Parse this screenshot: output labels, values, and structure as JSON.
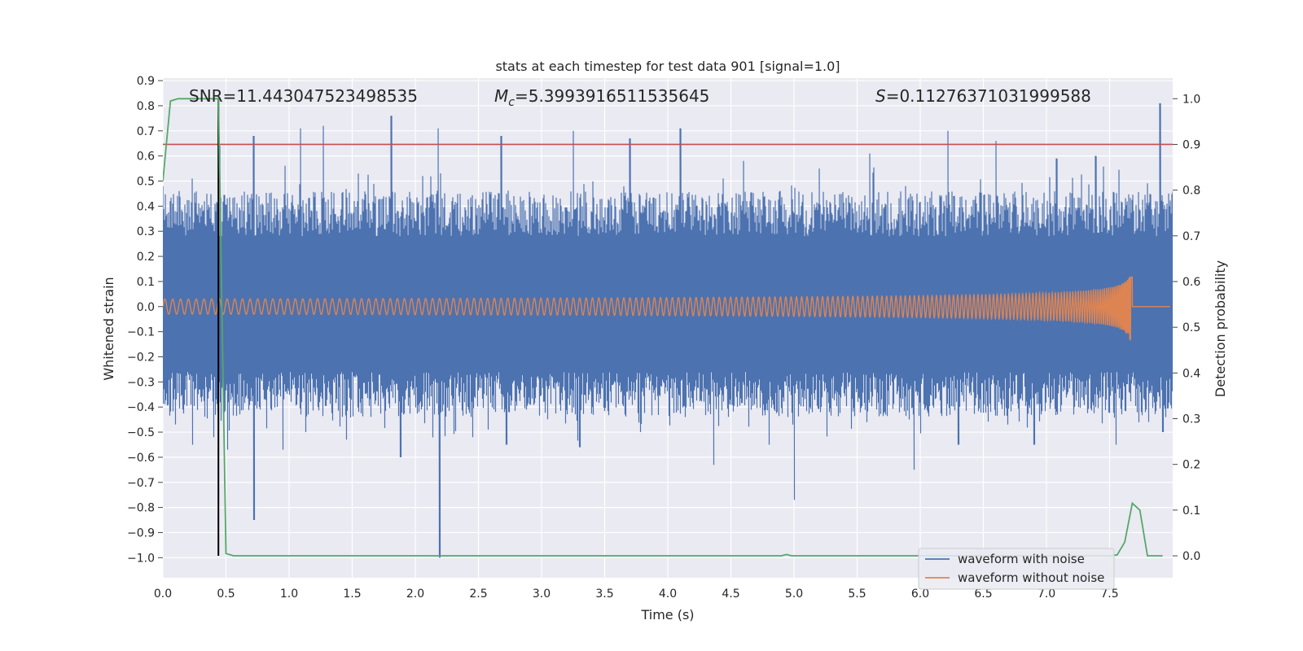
{
  "chart_data": {
    "type": "line",
    "title": "stats at each timestep for test data 901 [signal=1.0]",
    "xlabel": "Time (s)",
    "ylabel": "Whitened strain",
    "y2label": "Detection probability",
    "xlim": [
      0.0,
      8.0
    ],
    "ylim": [
      -1.08,
      0.91
    ],
    "y2lim": [
      -0.048,
      1.045
    ],
    "xticks": [
      "0.0",
      "0.5",
      "1.0",
      "1.5",
      "2.0",
      "2.5",
      "3.0",
      "3.5",
      "4.0",
      "4.5",
      "5.0",
      "5.5",
      "6.0",
      "6.5",
      "7.0",
      "7.5"
    ],
    "yticks": [
      "0.9",
      "0.8",
      "0.7",
      "0.6",
      "0.5",
      "0.4",
      "0.3",
      "0.2",
      "0.1",
      "0.0",
      "−0.1",
      "−0.2",
      "−0.3",
      "−0.4",
      "−0.5",
      "−0.6",
      "−0.7",
      "−0.8",
      "−0.9",
      "−1.0"
    ],
    "y2ticks": [
      "1.0",
      "0.9",
      "0.8",
      "0.7",
      "0.6",
      "0.5",
      "0.4",
      "0.3",
      "0.2",
      "0.1",
      "0.0"
    ],
    "annotations": {
      "snr": "SNR=11.443047523498535",
      "mc_symbol": "M",
      "mc_sub": "c",
      "mc_value": "=5.3993916511535645",
      "s_symbol": "S",
      "s_value": "=0.11276371031999588"
    },
    "threshold_line": {
      "y2": 0.9,
      "color": "#c44e52"
    },
    "detection_marker": {
      "x": 0.44,
      "color": "#000000"
    },
    "noise_band": {
      "typical_range": [
        -0.28,
        0.3
      ]
    },
    "noise_peaks": [
      {
        "x": 0.0,
        "y": 0.48
      },
      {
        "x": 0.06,
        "y": 0.42
      },
      {
        "x": 0.23,
        "y": 0.51
      },
      {
        "x": 0.23,
        "y": -0.55
      },
      {
        "x": 0.45,
        "y": 0.64
      },
      {
        "x": 0.51,
        "y": -0.57
      },
      {
        "x": 0.72,
        "y": 0.68
      },
      {
        "x": 0.72,
        "y": -0.85
      },
      {
        "x": 0.82,
        "y": -0.45
      },
      {
        "x": 0.95,
        "y": -0.57
      },
      {
        "x": 1.09,
        "y": 0.71
      },
      {
        "x": 1.13,
        "y": -0.5
      },
      {
        "x": 1.27,
        "y": 0.72
      },
      {
        "x": 1.45,
        "y": -0.53
      },
      {
        "x": 1.55,
        "y": 0.53
      },
      {
        "x": 1.81,
        "y": 0.76
      },
      {
        "x": 1.88,
        "y": -0.6
      },
      {
        "x": 2.06,
        "y": 0.52
      },
      {
        "x": 2.18,
        "y": 0.71
      },
      {
        "x": 2.19,
        "y": -1.0
      },
      {
        "x": 2.45,
        "y": -0.52
      },
      {
        "x": 2.68,
        "y": 0.68
      },
      {
        "x": 2.72,
        "y": -0.55
      },
      {
        "x": 3.25,
        "y": 0.7
      },
      {
        "x": 3.3,
        "y": -0.56
      },
      {
        "x": 3.7,
        "y": 0.67
      },
      {
        "x": 3.78,
        "y": -0.5
      },
      {
        "x": 4.1,
        "y": 0.71
      },
      {
        "x": 4.36,
        "y": -0.63
      },
      {
        "x": 4.6,
        "y": 0.58
      },
      {
        "x": 4.8,
        "y": -0.55
      },
      {
        "x": 5.0,
        "y": -0.77
      },
      {
        "x": 5.2,
        "y": 0.55
      },
      {
        "x": 5.6,
        "y": 0.61
      },
      {
        "x": 5.95,
        "y": -0.65
      },
      {
        "x": 6.22,
        "y": 0.7
      },
      {
        "x": 6.3,
        "y": -0.55
      },
      {
        "x": 6.6,
        "y": 0.66
      },
      {
        "x": 6.9,
        "y": -0.55
      },
      {
        "x": 7.08,
        "y": 0.59
      },
      {
        "x": 7.39,
        "y": 0.6
      },
      {
        "x": 7.55,
        "y": -0.55
      },
      {
        "x": 7.9,
        "y": 0.81
      },
      {
        "x": 7.92,
        "y": -0.5
      }
    ],
    "series": [
      {
        "name": "waveform with noise",
        "color": "#4c72b0",
        "axis": "left",
        "note": "dense noisy signal"
      },
      {
        "name": "waveform without noise",
        "color": "#dd8452",
        "axis": "left",
        "chirp": {
          "start": 0.0,
          "merger": 7.68,
          "end": 7.98,
          "amp_start": 0.03,
          "amp_merger": 0.21,
          "freq_start": 16
        }
      },
      {
        "name": "detection probability",
        "color": "#55a868",
        "axis": "right",
        "x": [
          0.0,
          0.06,
          0.12,
          0.18,
          0.25,
          0.3,
          0.37,
          0.44,
          0.5,
          0.56,
          0.62,
          1.0,
          2.0,
          3.0,
          4.0,
          4.9,
          4.94,
          4.98,
          5.5,
          6.0,
          6.5,
          7.0,
          7.5,
          7.56,
          7.62,
          7.68,
          7.74,
          7.8,
          7.86,
          7.92
        ],
        "y": [
          0.82,
          0.995,
          1.0,
          1.0,
          1.0,
          1.0,
          1.0,
          1.0,
          0.005,
          0.0,
          0.0,
          0.0,
          0.0,
          0.0,
          0.0,
          0.0,
          0.003,
          0.0,
          0.0,
          0.0,
          0.0,
          0.0,
          0.0,
          0.002,
          0.03,
          0.115,
          0.1,
          0.0,
          0.0,
          0.0
        ]
      }
    ],
    "legend": {
      "placement": "lower-right",
      "entries": [
        "waveform with noise",
        "waveform without noise"
      ]
    },
    "colors": {
      "background": "#eaeaf2",
      "grid": "#ffffff"
    }
  }
}
